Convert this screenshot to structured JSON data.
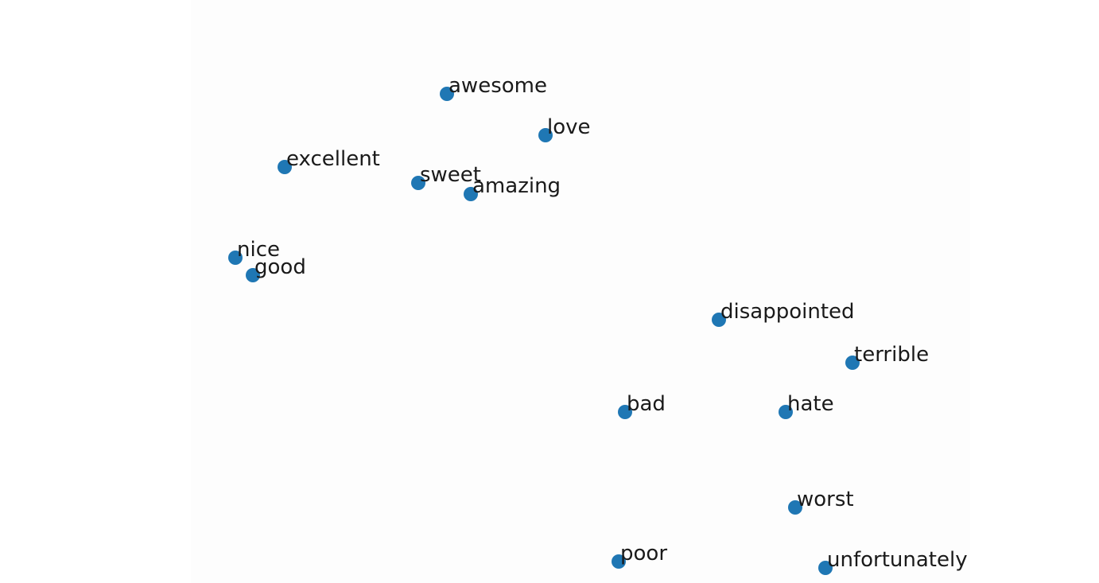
{
  "chart_data": {
    "type": "scatter",
    "color": "#1f77b4",
    "labels": [
      "awesome",
      "love",
      "excellent",
      "sweet",
      "amazing",
      "nice",
      "good",
      "disappointed",
      "terrible",
      "bad",
      "hate",
      "worst",
      "poor",
      "unfortunately"
    ],
    "x": [
      32.2,
      44.6,
      11.8,
      28.6,
      35.2,
      5.6,
      7.8,
      66.4,
      83.2,
      54.6,
      74.8,
      76.0,
      53.8,
      79.8
    ],
    "y": [
      61.5,
      56.3,
      52.3,
      50.3,
      48.9,
      40.9,
      38.7,
      33.1,
      27.7,
      21.5,
      21.5,
      9.5,
      2.7,
      1.9
    ],
    "xlim": [
      0,
      98
    ],
    "ylim": [
      0,
      73.3
    ]
  }
}
